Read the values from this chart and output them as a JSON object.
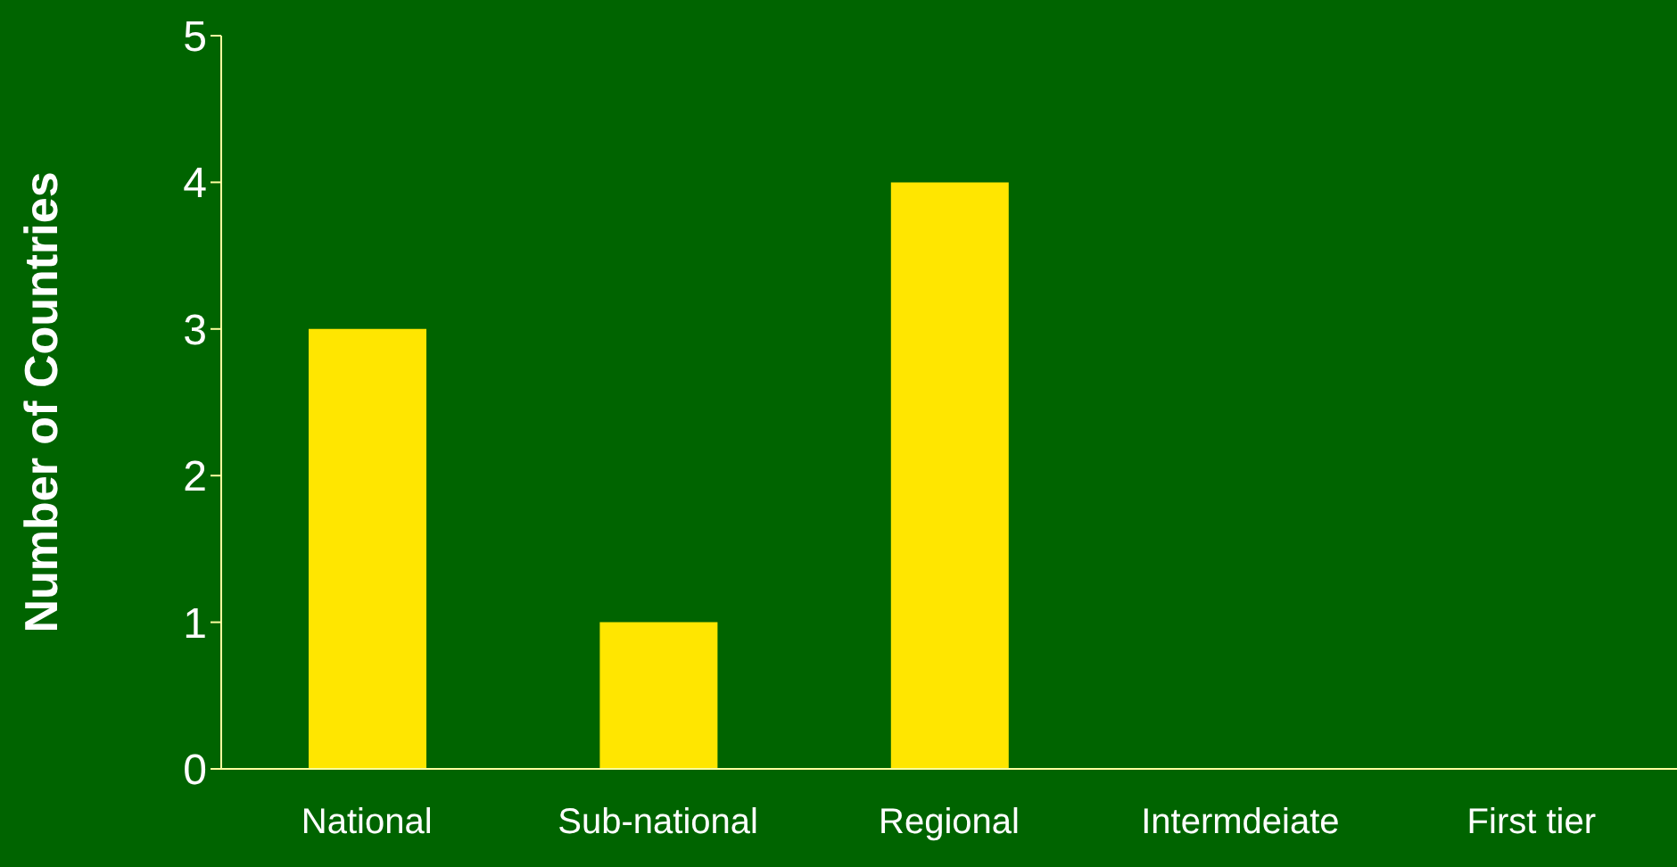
{
  "chart_data": {
    "type": "bar",
    "ylabel": "Number of Countries",
    "categories": [
      "National",
      "Sub-national",
      "Regional",
      "Intermdeiate",
      "First tier"
    ],
    "values": [
      3,
      1,
      4,
      0,
      0
    ],
    "color": "#ffe600",
    "ylim": [
      0,
      5
    ],
    "yticks": [
      0,
      1,
      2,
      3,
      4,
      5
    ],
    "grid": false,
    "legend": false
  }
}
